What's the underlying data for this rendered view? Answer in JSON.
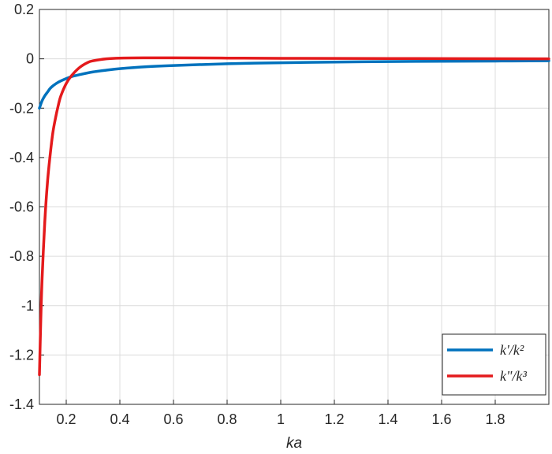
{
  "chart_data": {
    "type": "line",
    "title": "",
    "xlabel": "ka",
    "ylabel": "",
    "xlim": [
      0.1,
      2.0
    ],
    "ylim": [
      -1.4,
      0.2
    ],
    "xticks": [
      0.2,
      0.4,
      0.6,
      0.8,
      1,
      1.2,
      1.4,
      1.6,
      1.8
    ],
    "xtick_labels": [
      "0.2",
      "0.4",
      "0.6",
      "0.8",
      "1",
      "1.2",
      "1.4",
      "1.6",
      "1.8"
    ],
    "yticks": [
      0.2,
      0,
      -0.2,
      -0.4,
      -0.6,
      -0.8,
      -1,
      -1.2,
      -1.4
    ],
    "ytick_labels": [
      "0.2",
      "0",
      "-0.2",
      "-0.4",
      "-0.6",
      "-0.8",
      "-1",
      "-1.2",
      "-1.4"
    ],
    "grid": true,
    "legend_position": "bottom-right",
    "series": [
      {
        "name": "k'/k²",
        "color": "#0072BD",
        "x": [
          0.1,
          0.11,
          0.12,
          0.13,
          0.14,
          0.15,
          0.17,
          0.2,
          0.22,
          0.25,
          0.3,
          0.35,
          0.4,
          0.5,
          0.6,
          0.8,
          1.0,
          1.2,
          1.4,
          1.6,
          1.8,
          2.0
        ],
        "y": [
          -0.2,
          -0.17,
          -0.15,
          -0.135,
          -0.12,
          -0.11,
          -0.095,
          -0.08,
          -0.072,
          -0.064,
          -0.053,
          -0.046,
          -0.04,
          -0.032,
          -0.027,
          -0.02,
          -0.016,
          -0.013,
          -0.011,
          -0.01,
          -0.009,
          -0.008
        ]
      },
      {
        "name": "k\"/k³",
        "color": "#E41A1C",
        "x": [
          0.1,
          0.105,
          0.11,
          0.12,
          0.13,
          0.14,
          0.15,
          0.16,
          0.17,
          0.18,
          0.2,
          0.22,
          0.25,
          0.28,
          0.3,
          0.35,
          0.4,
          0.5,
          0.6,
          0.8,
          1.0,
          1.5,
          2.0
        ],
        "y": [
          -1.28,
          -1.06,
          -0.89,
          -0.66,
          -0.5,
          -0.39,
          -0.3,
          -0.24,
          -0.19,
          -0.15,
          -0.1,
          -0.068,
          -0.035,
          -0.015,
          -0.008,
          0.0,
          0.003,
          0.004,
          0.004,
          0.003,
          0.002,
          0.001,
          0.0
        ]
      }
    ]
  }
}
